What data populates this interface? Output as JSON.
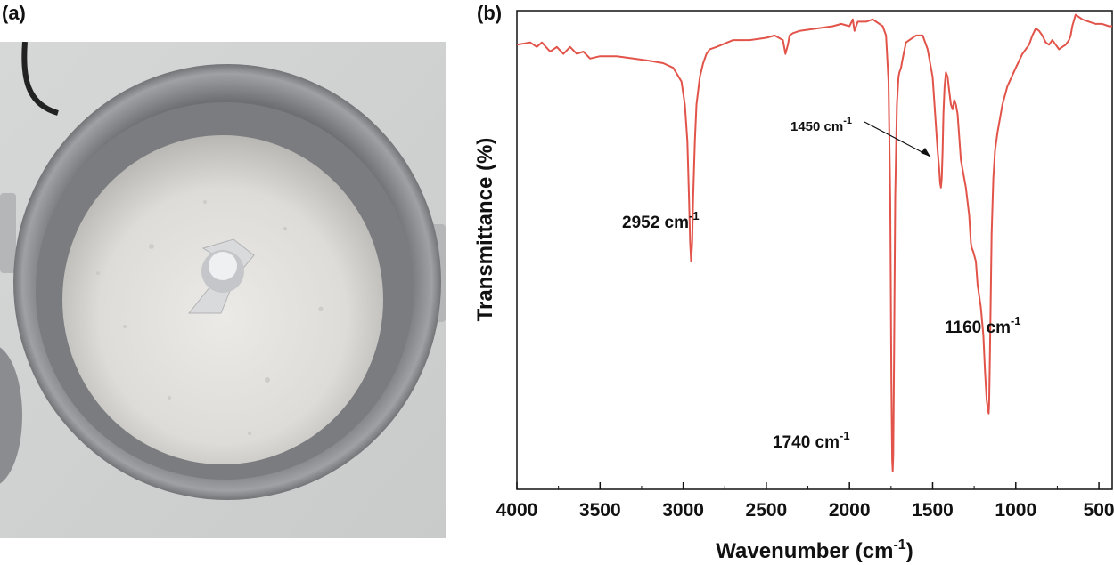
{
  "panels": {
    "a_label": "(a)",
    "b_label": "(b)"
  },
  "photo": {
    "description_icon": "powder-in-grinder-photo"
  },
  "chart_data": {
    "type": "line",
    "xlabel": "Wavenumber (cm",
    "xlabel_sup": "-1",
    "xlabel_end": ")",
    "ylabel": "Transmittance (%)",
    "xlim": [
      4000,
      420
    ],
    "ylim": [
      0,
      100
    ],
    "x_ticks": [
      4000,
      3500,
      3000,
      2500,
      2000,
      1500,
      1000,
      500
    ],
    "y_ticks_shown": false,
    "line_color": "#e2544a",
    "series": [
      {
        "x": [
          4000,
          3920,
          3880,
          3850,
          3800,
          3760,
          3720,
          3680,
          3640,
          3600,
          3560,
          3500,
          3400,
          3300,
          3200,
          3120,
          3060,
          3010,
          2990,
          2975,
          2965,
          2958,
          2952,
          2946,
          2940,
          2930,
          2920,
          2900,
          2880,
          2860,
          2840,
          2800,
          2700,
          2600,
          2500,
          2450,
          2400,
          2385,
          2370,
          2360,
          2340,
          2300,
          2200,
          2100,
          2050,
          2000,
          1980,
          1970,
          1960,
          1950,
          1900,
          1860,
          1800,
          1780,
          1765,
          1755,
          1748,
          1743,
          1740,
          1737,
          1732,
          1725,
          1715,
          1705,
          1700,
          1690,
          1680,
          1660,
          1640,
          1600,
          1560,
          1530,
          1500,
          1485,
          1470,
          1460,
          1455,
          1450,
          1445,
          1440,
          1435,
          1428,
          1420,
          1410,
          1400,
          1390,
          1380,
          1370,
          1360,
          1350,
          1330,
          1300,
          1280,
          1270,
          1265,
          1255,
          1240,
          1230,
          1210,
          1195,
          1185,
          1175,
          1168,
          1163,
          1160,
          1157,
          1152,
          1145,
          1135,
          1125,
          1110,
          1080,
          1050,
          1000,
          960,
          920,
          900,
          880,
          860,
          840,
          820,
          800,
          780,
          760,
          740,
          720,
          700,
          680,
          670,
          660,
          640,
          620,
          600,
          560,
          520,
          480,
          440,
          420
        ],
        "y": [
          93,
          93.5,
          92.5,
          93.5,
          91.5,
          92.5,
          91,
          92.5,
          91,
          91.5,
          90,
          90.5,
          90.5,
          90,
          89.5,
          89,
          88,
          85,
          80,
          72,
          60,
          50,
          46,
          50,
          60,
          72,
          80,
          86,
          89,
          91,
          92,
          92.5,
          94,
          94,
          94.5,
          95,
          94,
          91,
          93,
          95,
          95.5,
          96,
          96.5,
          97,
          97.5,
          97,
          98.5,
          96,
          97,
          98,
          98,
          98.5,
          97,
          95,
          85,
          60,
          20,
          3,
          0.5,
          4,
          25,
          60,
          80,
          86,
          87,
          88,
          90,
          93.5,
          94,
          95,
          95,
          92,
          86,
          78,
          70,
          66,
          63,
          62,
          64,
          70,
          78,
          84,
          87,
          86,
          83,
          80,
          79,
          81,
          80,
          78,
          68,
          62,
          56,
          50,
          49,
          48,
          46,
          41,
          36,
          30,
          22,
          16,
          14,
          13,
          15,
          22,
          34,
          52,
          64,
          70,
          74,
          80,
          84,
          88,
          91,
          93,
          95,
          96.5,
          96,
          95,
          93.5,
          93,
          94,
          93,
          92,
          92.5,
          93,
          94,
          95,
          97,
          99.5,
          99,
          98.5,
          98,
          97.5,
          97.5,
          97,
          97
        ]
      }
    ],
    "annotations": [
      {
        "text": "2952 cm",
        "sup": "-1"
      },
      {
        "text": "1450 cm",
        "sup": "-1"
      },
      {
        "text": "1160 cm",
        "sup": "-1"
      },
      {
        "text": "1740 cm",
        "sup": "-1"
      }
    ]
  }
}
